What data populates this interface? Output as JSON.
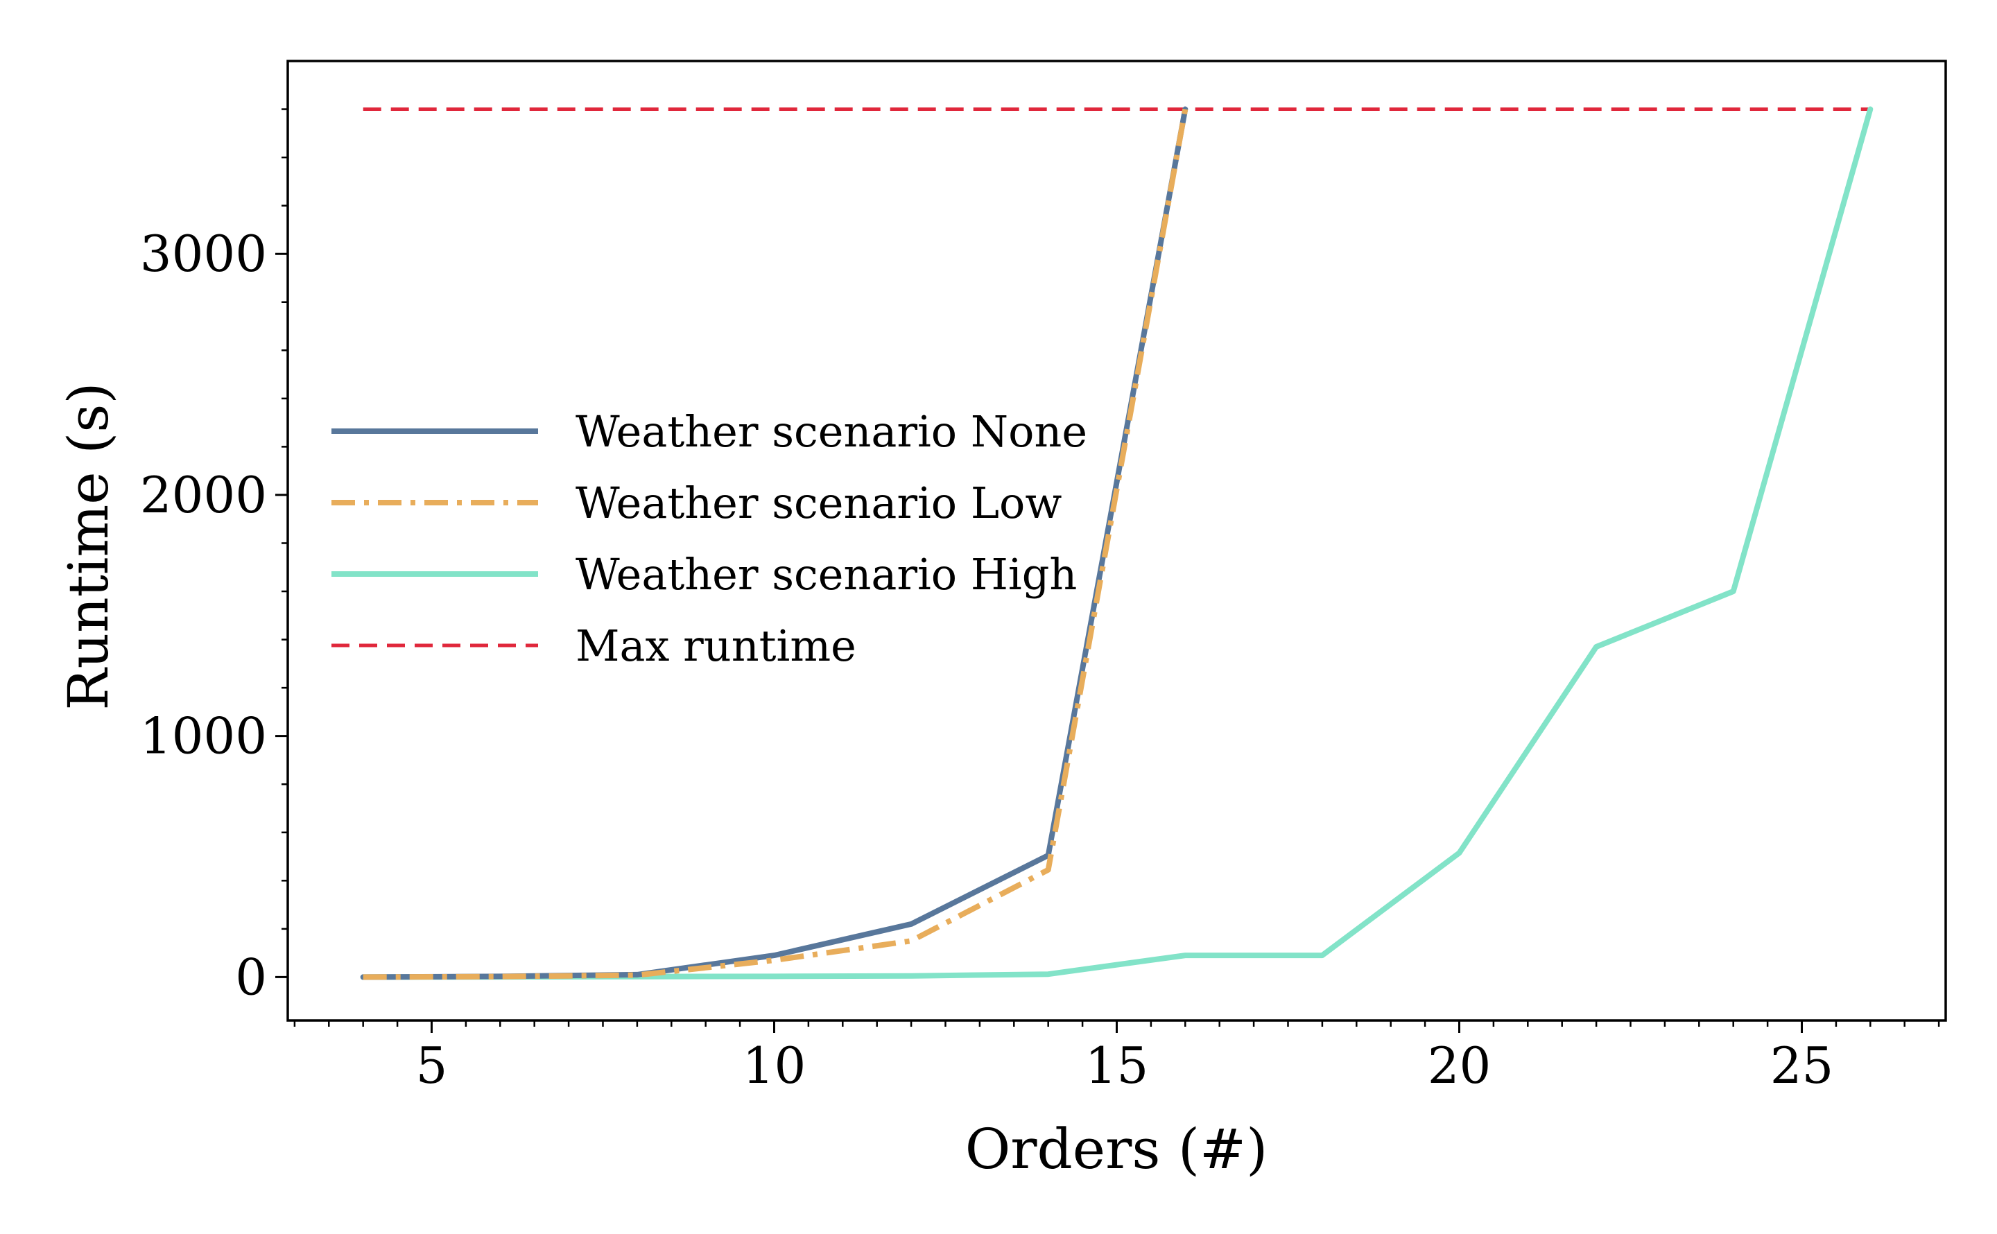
{
  "chart_data": {
    "type": "line",
    "title": "",
    "xlabel": "Orders (#)",
    "ylabel": "Runtime (s)",
    "xlim": [
      2.9,
      27.1
    ],
    "ylim": [
      -180,
      3800
    ],
    "x_ticks": [
      5,
      10,
      15,
      20,
      25
    ],
    "x_tick_labels": [
      "5",
      "10",
      "15",
      "20",
      "25"
    ],
    "y_ticks": [
      0,
      1000,
      2000,
      3000
    ],
    "y_tick_labels": [
      "0",
      "1000",
      "2000",
      "3000"
    ],
    "x_minor_step": 0.5,
    "y_minor_step": 200,
    "grid": false,
    "legend_position": "center-left",
    "series": [
      {
        "name": "Weather scenario None",
        "style": "solid",
        "color": "#58779b",
        "x": [
          4,
          6,
          8,
          10,
          12,
          14,
          16
        ],
        "y": [
          0,
          3,
          10,
          90,
          220,
          505,
          3600
        ]
      },
      {
        "name": "Weather scenario Low",
        "style": "dash-dot",
        "color": "#e8ad5b",
        "x": [
          4,
          6,
          8,
          10,
          12,
          14,
          16
        ],
        "y": [
          0,
          2,
          8,
          70,
          150,
          445,
          3600
        ]
      },
      {
        "name": "Weather scenario High",
        "style": "solid",
        "color": "#82e3c8",
        "x": [
          4,
          6,
          8,
          10,
          12,
          14,
          16,
          18,
          20,
          22,
          24,
          26
        ],
        "y": [
          0,
          1,
          2,
          3,
          5,
          12,
          90,
          90,
          515,
          1370,
          1600,
          3600
        ]
      },
      {
        "name": "Max runtime",
        "style": "dashed",
        "color": "#e0273b",
        "x": [
          4,
          26
        ],
        "y": [
          3600,
          3600
        ]
      }
    ]
  }
}
